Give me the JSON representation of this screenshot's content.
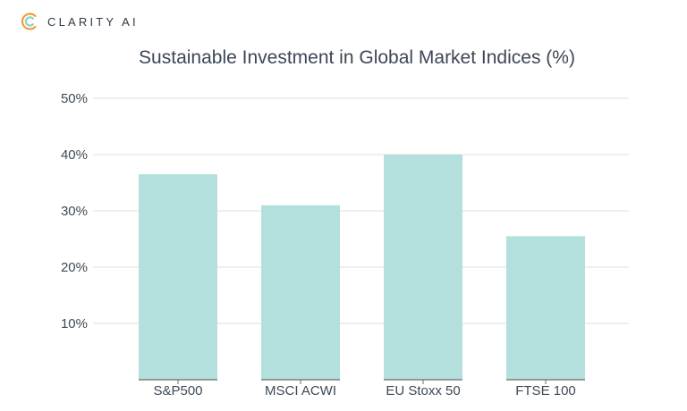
{
  "brand": {
    "name": "CLARITY AI",
    "logo_icon": "clarity-ai-logo-icon",
    "accent": "#f39a3b"
  },
  "chart_data": {
    "type": "bar",
    "title": "Sustainable Investment in Global Market Indices (%)",
    "categories": [
      "S&P500",
      "MSCI ACWI",
      "EU Stoxx 50",
      "FTSE 100"
    ],
    "values": [
      36.5,
      31,
      40,
      25.5
    ],
    "yticks": [
      10,
      20,
      30,
      40,
      50
    ],
    "ytick_labels": [
      "10%",
      "20%",
      "30%",
      "40%",
      "50%"
    ],
    "ylim": [
      0,
      50
    ],
    "xlabel": "",
    "ylabel": "",
    "grid": true,
    "bar_color": "#b3e0dc",
    "baseline_color": "#6b6b6b"
  }
}
